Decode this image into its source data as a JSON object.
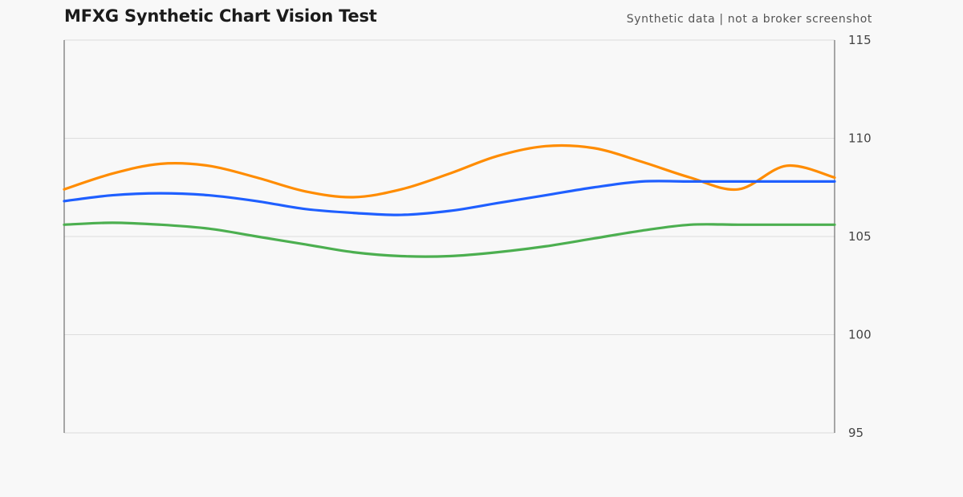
{
  "header": {
    "title": "MFXG Synthetic Chart Vision Test",
    "subtitle": "Synthetic data | not a broker screenshot"
  },
  "colors": {
    "background": "#f8f8f8",
    "grid": "#dddddd",
    "axis": "#555555",
    "orange": "#ff8c00",
    "blue": "#1f5fff",
    "green": "#4caf50"
  },
  "chart_data": {
    "type": "line",
    "title": "MFXG Synthetic Chart Vision Test",
    "xlabel": "",
    "ylabel": "",
    "ylim": [
      95,
      115
    ],
    "yticks": [
      95,
      100,
      105,
      110,
      115
    ],
    "y_axis_side": "right",
    "grid": true,
    "x": [
      0,
      1,
      2,
      3,
      4,
      5,
      6,
      7,
      8,
      9,
      10,
      11,
      12,
      13,
      14,
      15,
      16
    ],
    "series": [
      {
        "color": "#ff8c00",
        "values": [
          107.4,
          108.2,
          108.7,
          108.6,
          108.0,
          107.3,
          107.0,
          107.4,
          108.2,
          109.1,
          109.6,
          109.5,
          108.8,
          108.0,
          107.4,
          108.6,
          108.0
        ]
      },
      {
        "color": "#1f5fff",
        "values": [
          106.8,
          107.1,
          107.2,
          107.1,
          106.8,
          106.4,
          106.2,
          106.1,
          106.3,
          106.7,
          107.1,
          107.5,
          107.8,
          107.8,
          107.8,
          107.8,
          107.8
        ]
      },
      {
        "color": "#4caf50",
        "values": [
          105.6,
          105.7,
          105.6,
          105.4,
          105.0,
          104.6,
          104.2,
          104.0,
          104.0,
          104.2,
          104.5,
          104.9,
          105.3,
          105.6,
          105.6,
          105.6,
          105.6
        ]
      }
    ]
  }
}
